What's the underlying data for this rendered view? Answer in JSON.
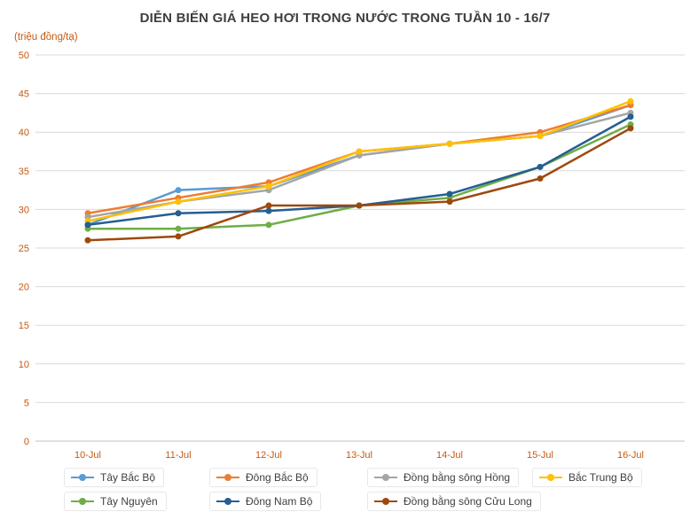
{
  "title": "DIỄN BIẾN GIÁ HEO HƠI TRONG NƯỚC TRONG TUẦN 10 - 16/7",
  "y_axis_unit": "(triệu đồng/tạ)",
  "chart_data": {
    "type": "line",
    "categories": [
      "10-Jul",
      "11-Jul",
      "12-Jul",
      "13-Jul",
      "14-Jul",
      "15-Jul",
      "16-Jul"
    ],
    "series": [
      {
        "name": "Tây Bắc Bộ",
        "color": "#5B9BD5",
        "values": [
          28.0,
          32.5,
          33.0,
          37.0,
          38.5,
          39.5,
          43.5
        ]
      },
      {
        "name": "Đông Bắc Bộ",
        "color": "#ED7D31",
        "values": [
          29.5,
          31.5,
          33.5,
          37.5,
          38.5,
          40.0,
          43.5
        ]
      },
      {
        "name": "Đồng bằng sông Hồng",
        "color": "#A5A5A5",
        "values": [
          29.0,
          31.0,
          32.5,
          37.0,
          38.5,
          39.5,
          42.5
        ]
      },
      {
        "name": "Bắc Trung Bộ",
        "color": "#FFC000",
        "values": [
          28.5,
          31.0,
          33.0,
          37.5,
          38.5,
          39.5,
          44.0
        ]
      },
      {
        "name": "Tây Nguyên",
        "color": "#70AD47",
        "values": [
          27.5,
          27.5,
          28.0,
          30.5,
          31.5,
          35.5,
          41.0
        ]
      },
      {
        "name": "Đông Nam Bộ",
        "color": "#255E91",
        "values": [
          28.0,
          29.5,
          29.8,
          30.5,
          32.0,
          35.5,
          42.0
        ]
      },
      {
        "name": "Đồng bằng sông Cửu Long",
        "color": "#9E480E",
        "values": [
          26.0,
          26.5,
          30.5,
          30.5,
          31.0,
          34.0,
          40.5
        ]
      }
    ],
    "title": "DIỄN BIẾN GIÁ HEO HƠI TRONG NƯỚC TRONG TUẦN 10 - 16/7",
    "xlabel": "",
    "ylabel": "(triệu đồng/tạ)",
    "ylim": [
      0,
      50
    ],
    "ytick_step": 5,
    "grid": true,
    "legend_position": "bottom",
    "axis_label_color": "#C55A11",
    "gridline_color": "#D9D9D9",
    "axis_line_color": "#BFBFBF"
  }
}
